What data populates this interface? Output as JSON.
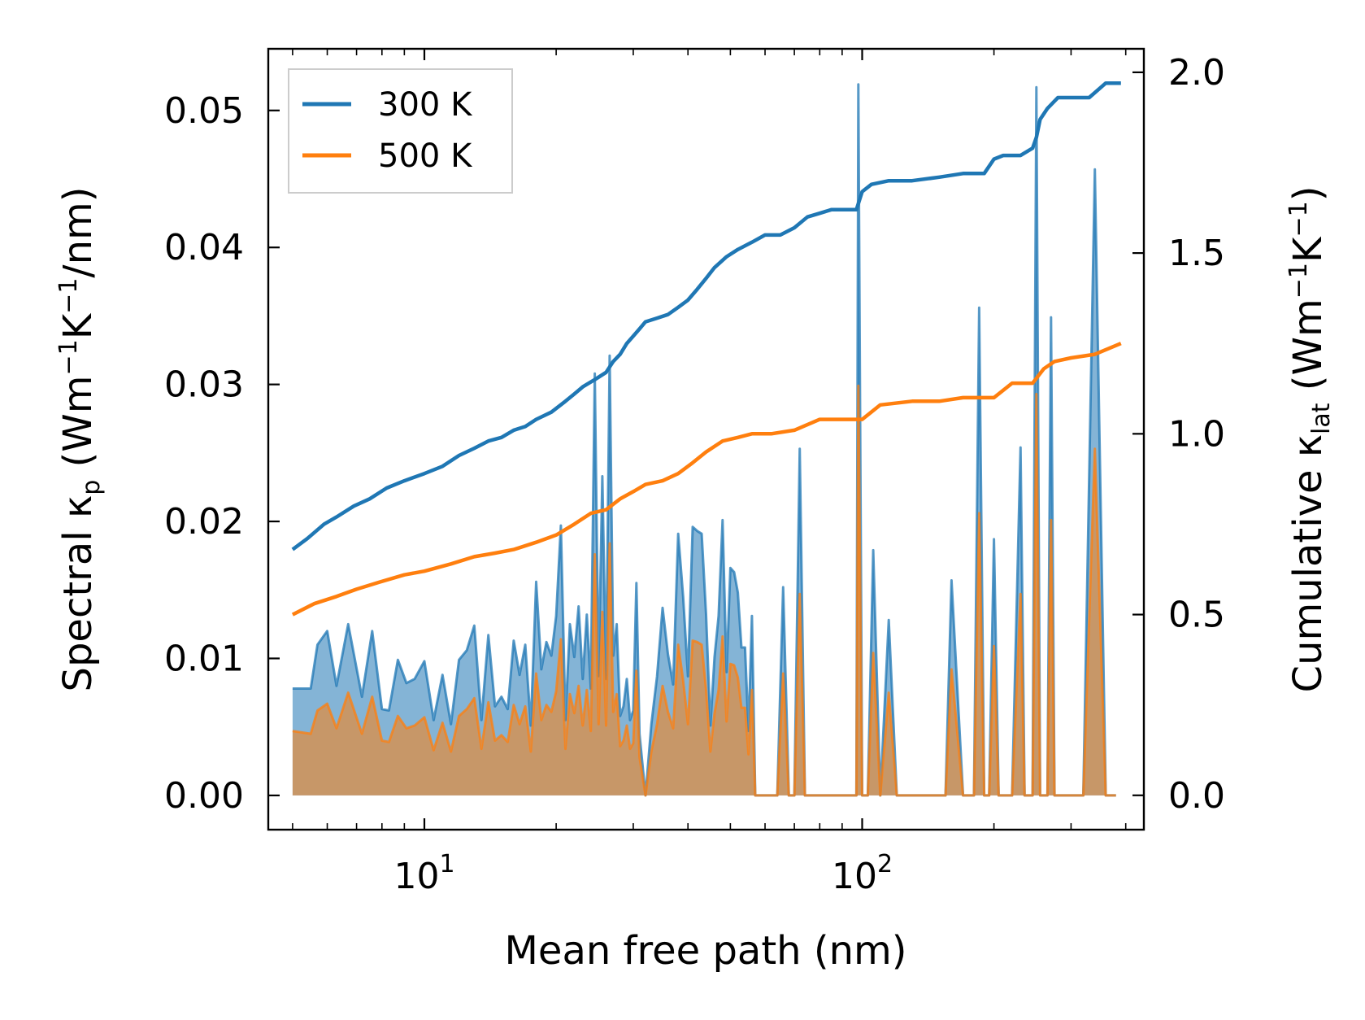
{
  "chart_data": {
    "type": "line",
    "xlabel": "Mean free path (nm)",
    "xscale": "log",
    "xlim": [
      4.4,
      440
    ],
    "x_ticks": [
      {
        "value": 10,
        "base": "10",
        "exp": "1"
      },
      {
        "value": 100,
        "base": "10",
        "exp": "2"
      }
    ],
    "y_left": {
      "label_main": "Spectral κ",
      "label_sub": "p",
      "unit_open": " (Wm",
      "unit_exp1": "−1",
      "unit_mid": "K",
      "unit_exp2": "−1",
      "unit_close": "/nm)",
      "ylim": [
        -0.0025,
        0.0545
      ],
      "ticks": [
        "0.00",
        "0.01",
        "0.02",
        "0.03",
        "0.04",
        "0.05"
      ]
    },
    "y_right": {
      "label_main": "Cumulative κ",
      "label_sub": "lat",
      "unit_open": " (Wm",
      "unit_exp1": "−1",
      "unit_mid": "K",
      "unit_exp2": "−1",
      "unit_close": ")",
      "ylim": [
        -0.095,
        2.065
      ],
      "ticks": [
        "0.0",
        "0.5",
        "1.0",
        "1.5",
        "2.0"
      ]
    },
    "legend": {
      "position": "top-left",
      "entries": [
        {
          "label": "300 K",
          "color": "#1f77b4"
        },
        {
          "label": "500 K",
          "color": "#ff7f0e"
        }
      ]
    },
    "series": [
      {
        "name": "300 K",
        "color": "#1f77b4",
        "axis": "right",
        "kind": "cumulative",
        "x": [
          5,
          5.4,
          5.9,
          6.3,
          6.9,
          7.5,
          8.2,
          9,
          10,
          11,
          12,
          13,
          14,
          15,
          16,
          17,
          18,
          19.5,
          21,
          22,
          23,
          24.5,
          26,
          27,
          28,
          29,
          30,
          31,
          32,
          34,
          36,
          38,
          40,
          42,
          44,
          46,
          49,
          52,
          56,
          60,
          65,
          70,
          75,
          80,
          85,
          90,
          97,
          100,
          105,
          115,
          130,
          150,
          170,
          190,
          200,
          210,
          230,
          245,
          250,
          255,
          265,
          280,
          300,
          330,
          360,
          390
        ],
        "values": [
          0.68,
          0.71,
          0.75,
          0.77,
          0.8,
          0.82,
          0.85,
          0.87,
          0.89,
          0.91,
          0.94,
          0.96,
          0.98,
          0.99,
          1.01,
          1.02,
          1.04,
          1.06,
          1.09,
          1.11,
          1.13,
          1.15,
          1.17,
          1.2,
          1.22,
          1.25,
          1.27,
          1.29,
          1.31,
          1.32,
          1.33,
          1.35,
          1.37,
          1.4,
          1.43,
          1.46,
          1.49,
          1.51,
          1.53,
          1.55,
          1.55,
          1.57,
          1.6,
          1.61,
          1.62,
          1.62,
          1.62,
          1.67,
          1.69,
          1.7,
          1.7,
          1.71,
          1.72,
          1.72,
          1.76,
          1.77,
          1.77,
          1.79,
          1.82,
          1.87,
          1.9,
          1.93,
          1.93,
          1.93,
          1.97,
          1.97
        ]
      },
      {
        "name": "500 K",
        "color": "#ff7f0e",
        "axis": "right",
        "kind": "cumulative",
        "x": [
          5,
          5.6,
          6.3,
          7,
          7.9,
          9,
          10,
          11.5,
          13,
          14.5,
          16,
          18,
          20,
          22,
          24,
          26,
          28,
          30,
          32,
          35,
          38,
          41,
          44,
          48,
          52,
          56,
          62,
          70,
          80,
          90,
          100,
          110,
          130,
          150,
          170,
          190,
          200,
          220,
          245,
          260,
          275,
          300,
          340,
          390
        ],
        "values": [
          0.5,
          0.53,
          0.55,
          0.57,
          0.59,
          0.61,
          0.62,
          0.64,
          0.66,
          0.67,
          0.68,
          0.7,
          0.72,
          0.75,
          0.78,
          0.79,
          0.82,
          0.84,
          0.86,
          0.87,
          0.89,
          0.92,
          0.95,
          0.98,
          0.99,
          1.0,
          1.0,
          1.01,
          1.04,
          1.04,
          1.04,
          1.08,
          1.09,
          1.09,
          1.1,
          1.1,
          1.1,
          1.14,
          1.14,
          1.18,
          1.2,
          1.21,
          1.22,
          1.25
        ]
      },
      {
        "name": "300 K",
        "color": "#1f77b4",
        "axis": "left",
        "kind": "spectral",
        "x": [
          5,
          5.5,
          5.7,
          6,
          6.3,
          6.7,
          7.2,
          7.6,
          8,
          8.3,
          8.7,
          9.1,
          9.5,
          10,
          10.5,
          11,
          11.5,
          12,
          12.5,
          13,
          13.5,
          14,
          14.5,
          15,
          15.5,
          16,
          16.5,
          17,
          17.5,
          18,
          18.5,
          19,
          19.5,
          20,
          20.5,
          21,
          21.5,
          22,
          22.5,
          23,
          23.5,
          24,
          24.5,
          25,
          25.5,
          26,
          26.5,
          27,
          27.5,
          28,
          28.5,
          29,
          29.5,
          30,
          30.5,
          31,
          32,
          33,
          34,
          35,
          36,
          37,
          38,
          39,
          40,
          41,
          42,
          43,
          44,
          45,
          46,
          47,
          48,
          49,
          50,
          51,
          52,
          53,
          54,
          55,
          56,
          57,
          58,
          59,
          60,
          61,
          62,
          64,
          66,
          68,
          70,
          72,
          74,
          76,
          78,
          80,
          82,
          84,
          86,
          88,
          90,
          93,
          97,
          98,
          100,
          103,
          106,
          110,
          115,
          120,
          125,
          130,
          140,
          150,
          155,
          160,
          170,
          180,
          185,
          190,
          195,
          200,
          205,
          210,
          220,
          230,
          235,
          240,
          245,
          250,
          255,
          260,
          265,
          270,
          275,
          280,
          285,
          290,
          300,
          320,
          340,
          360,
          370,
          380
        ],
        "values": [
          0.0078,
          0.0078,
          0.011,
          0.012,
          0.008,
          0.0125,
          0.0072,
          0.012,
          0.0063,
          0.0062,
          0.0099,
          0.0082,
          0.0085,
          0.0098,
          0.0055,
          0.0088,
          0.0052,
          0.0099,
          0.0106,
          0.0124,
          0.0055,
          0.0117,
          0.0065,
          0.0072,
          0.0063,
          0.0113,
          0.0088,
          0.011,
          0.0051,
          0.0156,
          0.0092,
          0.0112,
          0.0102,
          0.0131,
          0.0197,
          0.0055,
          0.0125,
          0.0101,
          0.0138,
          0.0085,
          0.0132,
          0.0078,
          0.0308,
          0.0087,
          0.0233,
          0.0085,
          0.0321,
          0.0102,
          0.0125,
          0.0058,
          0.0065,
          0.0085,
          0.0055,
          0.0062,
          0.0155,
          0.0045,
          0.0,
          0.0052,
          0.0087,
          0.0137,
          0.0103,
          0.0081,
          0.0191,
          0.0145,
          0.0087,
          0.0196,
          0.0193,
          0.0191,
          0.0132,
          0.0051,
          0.0101,
          0.0131,
          0.0201,
          0.009,
          0.0166,
          0.0163,
          0.0148,
          0.0108,
          0.0108,
          0.0047,
          0.0131,
          0.0,
          0.0,
          0.0,
          0.0,
          0.0,
          0.0,
          0.0,
          0.0152,
          0.0,
          0.0,
          0.0253,
          0.0,
          0.0,
          0.0,
          0.0,
          0.0,
          0.0,
          0.0,
          0.0,
          0.0,
          0.0,
          0.0,
          0.0519,
          0.0,
          0.0,
          0.0179,
          0.0,
          0.0128,
          0.0,
          0.0,
          0.0,
          0.0,
          0.0,
          0.0,
          0.0157,
          0.0,
          0.0,
          0.0356,
          0.0,
          0.0,
          0.0187,
          0.0,
          0.0,
          0.0,
          0.0254,
          0.0,
          0.0,
          0.0,
          0.0517,
          0.0,
          0.0,
          0.0,
          0.0349,
          0.0,
          0.0,
          0.0,
          0.0,
          0.0,
          0.0,
          0.0457,
          0.0,
          0.0,
          0.0
        ]
      },
      {
        "name": "500 K",
        "color": "#ff7f0e",
        "axis": "left",
        "kind": "spectral",
        "x": [
          5,
          5.5,
          5.7,
          6,
          6.3,
          6.7,
          7.2,
          7.6,
          8,
          8.3,
          8.7,
          9.1,
          9.5,
          10,
          10.5,
          11,
          11.5,
          12,
          12.5,
          13,
          13.5,
          14,
          14.5,
          15,
          15.5,
          16,
          16.5,
          17,
          17.5,
          18,
          18.5,
          19,
          19.5,
          20,
          20.5,
          21,
          21.5,
          22,
          22.5,
          23,
          23.5,
          24,
          24.5,
          25,
          25.5,
          26,
          26.5,
          27,
          27.5,
          28,
          28.5,
          29,
          29.5,
          30,
          30.5,
          31,
          32,
          33,
          34,
          35,
          36,
          37,
          38,
          39,
          40,
          41,
          42,
          43,
          44,
          45,
          46,
          47,
          48,
          49,
          50,
          51,
          52,
          53,
          54,
          55,
          56,
          57,
          58,
          59,
          60,
          61,
          62,
          64,
          66,
          68,
          70,
          72,
          74,
          76,
          78,
          80,
          82,
          84,
          86,
          88,
          90,
          93,
          97,
          98,
          100,
          103,
          106,
          110,
          115,
          120,
          125,
          130,
          140,
          150,
          155,
          160,
          170,
          180,
          185,
          190,
          195,
          200,
          205,
          210,
          220,
          230,
          235,
          240,
          245,
          250,
          255,
          260,
          265,
          270,
          275,
          280,
          285,
          290,
          300,
          320,
          340,
          360,
          370,
          380
        ],
        "values": [
          0.0047,
          0.0045,
          0.0062,
          0.0067,
          0.0049,
          0.0075,
          0.0045,
          0.0072,
          0.004,
          0.0039,
          0.0058,
          0.0049,
          0.0051,
          0.0057,
          0.0033,
          0.0053,
          0.0032,
          0.0058,
          0.0063,
          0.0071,
          0.0034,
          0.0068,
          0.004,
          0.0044,
          0.0039,
          0.0066,
          0.0052,
          0.0065,
          0.0032,
          0.0089,
          0.0055,
          0.0066,
          0.0061,
          0.0076,
          0.0114,
          0.0034,
          0.0074,
          0.006,
          0.008,
          0.0051,
          0.0077,
          0.0047,
          0.0176,
          0.0052,
          0.0134,
          0.0051,
          0.0184,
          0.0061,
          0.0074,
          0.0036,
          0.004,
          0.0051,
          0.0034,
          0.0038,
          0.0091,
          0.0028,
          0.0,
          0.0032,
          0.0052,
          0.008,
          0.0061,
          0.0049,
          0.011,
          0.0084,
          0.0052,
          0.0113,
          0.0112,
          0.011,
          0.0077,
          0.0032,
          0.006,
          0.0077,
          0.0116,
          0.0054,
          0.0096,
          0.0095,
          0.0086,
          0.0064,
          0.0064,
          0.003,
          0.0077,
          0.0,
          0.0,
          0.0,
          0.0,
          0.0,
          0.0,
          0.0,
          0.0089,
          0.0,
          0.0,
          0.0147,
          0.0,
          0.0,
          0.0,
          0.0,
          0.0,
          0.0,
          0.0,
          0.0,
          0.0,
          0.0,
          0.0,
          0.0299,
          0.0,
          0.0,
          0.0104,
          0.0,
          0.0075,
          0.0,
          0.0,
          0.0,
          0.0,
          0.0,
          0.0,
          0.0092,
          0.0,
          0.0,
          0.0206,
          0.0,
          0.0,
          0.0109,
          0.0,
          0.0,
          0.0,
          0.0147,
          0.0,
          0.0,
          0.0,
          0.0293,
          0.0,
          0.0,
          0.0,
          0.0201,
          0.0,
          0.0,
          0.0,
          0.0,
          0.0,
          0.0,
          0.0253,
          0.0,
          0.0,
          0.0
        ]
      }
    ]
  }
}
